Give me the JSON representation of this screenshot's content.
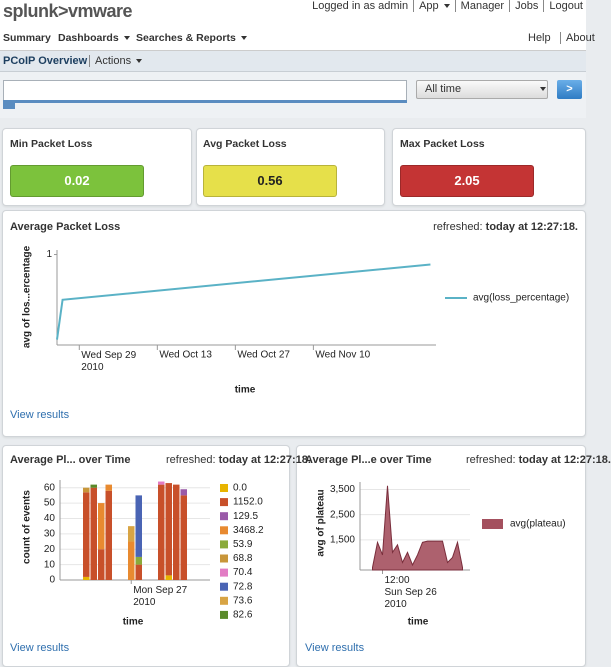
{
  "header": {
    "logo": "splunk>vmware",
    "links": [
      "Logged in as admin",
      "App",
      "Manager",
      "Jobs",
      "Logout"
    ]
  },
  "nav": {
    "left": [
      "Summary",
      "Dashboards",
      "Searches & Reports"
    ],
    "right": [
      "Help",
      "About"
    ]
  },
  "subnav": {
    "title": "PCoIP Overview",
    "actions": "Actions"
  },
  "search": {
    "time_range": "All time",
    "button": ">"
  },
  "single_values": [
    {
      "label": "Min Packet Loss",
      "value": 0.02,
      "color": "#7cc23c"
    },
    {
      "label": "Avg Packet Loss",
      "value": 0.56,
      "color": "#e6e04a"
    },
    {
      "label": "Max Packet Loss",
      "value": 2.05,
      "color": "#c43434"
    }
  ],
  "chart_data": [
    {
      "type": "line",
      "title": "Average Packet Loss",
      "refreshed_label": "refreshed:",
      "refreshed_time": "today at 12:27:18.",
      "link": "View results",
      "xlabel": "time",
      "ylabel": "avg of los...ercentage",
      "x": [
        "2010-09-25",
        "2010-09-26",
        "2010-12-01"
      ],
      "series": [
        {
          "name": "avg(loss_percentage)",
          "color": "#5ab2c6",
          "values": [
            0.06,
            0.5,
            0.89
          ]
        }
      ],
      "xlim": [
        "2010-09-25",
        "2010-12-02"
      ],
      "xticks": [
        {
          "value": "2010-09-29",
          "label": "Wed Sep 29\n2010"
        },
        {
          "value": "2010-10-13",
          "label": "Wed Oct 13"
        },
        {
          "value": "2010-10-27",
          "label": "Wed Oct 27"
        },
        {
          "value": "2010-11-10",
          "label": "Wed Nov 10"
        }
      ],
      "ylim": [
        0,
        1.05
      ],
      "yticks": [
        1
      ],
      "grid": false,
      "legend": "right"
    },
    {
      "type": "bar",
      "stacked": true,
      "title": "Average Pl... over Time",
      "refreshed_label": "refreshed:",
      "refreshed_time": "today at 12:27:18.",
      "link": "View results",
      "xlabel": "time",
      "ylabel": "count of events",
      "categories": [
        null,
        null,
        null,
        null,
        null,
        null,
        null,
        null,
        null,
        "Mon Sep 27\n2010",
        null,
        null,
        null,
        null,
        null,
        null,
        null,
        null,
        null,
        null
      ],
      "series": [
        {
          "name": "0.0",
          "color": "#e8b400",
          "values": [
            null,
            null,
            null,
            2,
            null,
            null,
            null,
            null,
            null,
            null,
            null,
            null,
            null,
            null,
            3,
            null,
            null,
            null,
            null,
            null
          ]
        },
        {
          "name": "1152.0",
          "color": "#c8502a",
          "values": [
            null,
            null,
            null,
            55,
            60,
            20,
            58,
            null,
            null,
            null,
            10,
            null,
            null,
            62,
            60,
            62,
            55,
            null,
            null,
            null
          ]
        },
        {
          "name": "129.5",
          "color": "#9a5aa8",
          "values": [
            null,
            null,
            null,
            null,
            null,
            null,
            null,
            null,
            null,
            null,
            null,
            null,
            null,
            null,
            null,
            null,
            4,
            null,
            null,
            null
          ]
        },
        {
          "name": "3468.2",
          "color": "#e88a30",
          "values": [
            null,
            null,
            null,
            null,
            null,
            30,
            4,
            null,
            null,
            25,
            null,
            null,
            null,
            null,
            null,
            null,
            null,
            null,
            null,
            null
          ]
        },
        {
          "name": "53.9",
          "color": "#8aaa3a",
          "values": [
            null,
            null,
            null,
            null,
            null,
            null,
            null,
            null,
            null,
            null,
            5,
            null,
            null,
            null,
            null,
            null,
            null,
            null,
            null,
            null
          ]
        },
        {
          "name": "68.8",
          "color": "#c8963a",
          "values": [
            null,
            null,
            null,
            3,
            null,
            null,
            null,
            null,
            null,
            null,
            null,
            null,
            null,
            null,
            null,
            null,
            null,
            null,
            null,
            null
          ]
        },
        {
          "name": "70.4",
          "color": "#e27cc4",
          "values": [
            null,
            null,
            null,
            null,
            null,
            null,
            null,
            null,
            null,
            null,
            null,
            null,
            null,
            2,
            null,
            null,
            null,
            null,
            null,
            null
          ]
        },
        {
          "name": "72.8",
          "color": "#4a64b4",
          "values": [
            null,
            null,
            null,
            null,
            null,
            null,
            null,
            null,
            null,
            null,
            40,
            null,
            null,
            null,
            null,
            null,
            null,
            null,
            null,
            null
          ]
        },
        {
          "name": "73.6",
          "color": "#d8a444",
          "values": [
            null,
            null,
            null,
            null,
            null,
            null,
            null,
            null,
            null,
            10,
            null,
            null,
            null,
            null,
            null,
            null,
            null,
            null,
            null,
            null
          ]
        },
        {
          "name": "82.6",
          "color": "#5a8a2a",
          "values": [
            null,
            null,
            null,
            null,
            2,
            null,
            null,
            null,
            null,
            null,
            null,
            null,
            null,
            null,
            null,
            null,
            null,
            null,
            null,
            null
          ]
        }
      ],
      "ylim": [
        0,
        65
      ],
      "yticks": [
        0,
        10,
        20,
        30,
        40,
        50,
        60
      ],
      "grid": true,
      "legend": "right"
    },
    {
      "type": "area",
      "title": "Average Pl...e over Time",
      "refreshed_label": "refreshed:",
      "refreshed_time": "today at 12:27:18.",
      "link": "View results",
      "xlabel": "time",
      "ylabel": "avg of plateau",
      "categories": [
        null,
        null,
        null,
        null,
        "12:00\nSun Sep 26\n2010",
        null,
        null,
        null,
        null,
        null,
        null,
        null,
        null,
        null,
        null,
        null,
        null,
        null,
        null,
        null,
        null,
        null
      ],
      "series": [
        {
          "name": "avg(plateau)",
          "color": "#a4505e",
          "values": [
            null,
            null,
            400,
            1400,
            900,
            3650,
            1000,
            1300,
            600,
            1000,
            500,
            900,
            1400,
            1450,
            1450,
            1450,
            1450,
            600,
            800,
            1400,
            400,
            null
          ]
        }
      ],
      "ylim": [
        300,
        3800
      ],
      "yticks": [
        {
          "value": 1500,
          "label": "1,500"
        },
        {
          "value": 2500,
          "label": "2,500"
        },
        {
          "value": 3500,
          "label": "3,500"
        }
      ],
      "grid": true,
      "legend": "right"
    }
  ]
}
